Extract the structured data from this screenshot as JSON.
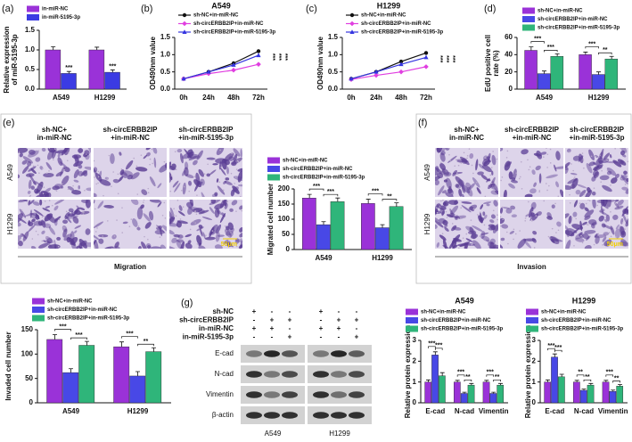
{
  "panel_labels": [
    "(a)",
    "(b)",
    "(c)",
    "(d)",
    "(e)",
    "(f)",
    "(g)"
  ],
  "chart_data": [
    {
      "type": "bar",
      "ylabel": [
        "Relative expression",
        "of miR-5195-3p"
      ],
      "categories": [
        "A549",
        "H1299"
      ],
      "series": [
        {
          "name": "in-miR-NC",
          "color": "#9a32d8",
          "values": [
            1.0,
            1.0
          ],
          "errors": [
            0.08,
            0.07
          ]
        },
        {
          "name": "in-miR-5195-3p",
          "color": "#3b3be3",
          "values": [
            0.4,
            0.43
          ],
          "errors": [
            0.05,
            0.06
          ]
        }
      ],
      "ylim": [
        0,
        1.5
      ],
      "yticks": [
        {
          "value": 0,
          "label": "0.0"
        },
        {
          "value": 0.5,
          "label": "0.5"
        },
        {
          "value": 1,
          "label": "1.0"
        },
        {
          "value": 1.5,
          "label": "1.5"
        }
      ],
      "annotations": [
        "***",
        "***"
      ],
      "legend": "top"
    },
    {
      "type": "line",
      "title": "A549",
      "ylabel": "OD490nm value",
      "categories": [
        "0h",
        "24h",
        "48h",
        "72h"
      ],
      "series": [
        {
          "name": "sh-NC+in-miR-NC",
          "color": "#111111",
          "marker": "circle",
          "values": [
            0.3,
            0.5,
            0.75,
            1.1
          ]
        },
        {
          "name": "sh-circERBB2IP+in-miR-NC",
          "color": "#e03ee0",
          "marker": "diamond",
          "values": [
            0.3,
            0.45,
            0.55,
            0.72
          ]
        },
        {
          "name": "sh-circERBB2IP+in-miR-5195-3p",
          "color": "#3535e0",
          "marker": "triangle",
          "values": [
            0.3,
            0.5,
            0.7,
            0.98
          ]
        }
      ],
      "ylim": [
        0,
        1.5
      ],
      "yticks": [
        {
          "value": 0,
          "label": "0.0"
        },
        {
          "value": 0.5,
          "label": "0.5"
        },
        {
          "value": 1,
          "label": "1.0"
        },
        {
          "value": 1.5,
          "label": "1.5"
        }
      ],
      "annotations": [
        "***",
        "***",
        "***"
      ],
      "legend": "top"
    },
    {
      "type": "line",
      "title": "H1299",
      "ylabel": "OD490nm value",
      "categories": [
        "0h",
        "24h",
        "48h",
        "72h"
      ],
      "series": [
        {
          "name": "sh-NC+in-miR-NC",
          "color": "#111111",
          "marker": "circle",
          "values": [
            0.3,
            0.5,
            0.8,
            1.05
          ]
        },
        {
          "name": "sh-circERBB2IP+in-miR-NC",
          "color": "#e03ee0",
          "marker": "diamond",
          "values": [
            0.28,
            0.4,
            0.5,
            0.65
          ]
        },
        {
          "name": "sh-circERBB2IP+in-miR-5195-3p",
          "color": "#3535e0",
          "marker": "triangle",
          "values": [
            0.3,
            0.5,
            0.72,
            0.92
          ]
        }
      ],
      "ylim": [
        0,
        1.5
      ],
      "yticks": [
        {
          "value": 0,
          "label": "0.0"
        },
        {
          "value": 0.5,
          "label": "0.5"
        },
        {
          "value": 1,
          "label": "1.0"
        },
        {
          "value": 1.5,
          "label": "1.5"
        }
      ],
      "annotations": [
        "***",
        "***",
        "***"
      ],
      "legend": "top"
    },
    {
      "type": "bar",
      "ylabel": [
        "EdU positive cell",
        "rate (%)"
      ],
      "categories": [
        "A549",
        "H1299"
      ],
      "series": [
        {
          "name": "sh-NC+in-miR-NC",
          "color": "#9a32d8",
          "values": [
            45,
            40
          ],
          "errors": [
            4,
            3
          ]
        },
        {
          "name": "sh-circERBB2IP+in-miR-NC",
          "color": "#4848e6",
          "values": [
            18,
            17
          ],
          "errors": [
            3,
            3
          ]
        },
        {
          "name": "sh-circERBB2IP+in-miR-5195-3p",
          "color": "#2fb57a",
          "values": [
            38,
            35
          ],
          "errors": [
            3,
            3
          ]
        }
      ],
      "ylim": [
        0,
        60
      ],
      "yticks": [
        0,
        20,
        40,
        60
      ],
      "annotations": [
        "***",
        "***",
        "***",
        "**"
      ],
      "legend": "top"
    },
    {
      "type": "bar",
      "ylabel": "Migrated cell number",
      "categories": [
        "A549",
        "H1299"
      ],
      "series": [
        {
          "name": "sh-NC+in-miR-NC",
          "color": "#9a32d8",
          "values": [
            170,
            152
          ],
          "errors": [
            12,
            14
          ]
        },
        {
          "name": "sh-circERBB2IP+in-miR-NC",
          "color": "#4848e6",
          "values": [
            82,
            72
          ],
          "errors": [
            10,
            10
          ]
        },
        {
          "name": "sh-circERBB2IP+in-miR-5195-3p",
          "color": "#2fb57a",
          "values": [
            158,
            142
          ],
          "errors": [
            12,
            12
          ]
        }
      ],
      "ylim": [
        0,
        200
      ],
      "yticks": [
        0,
        50,
        100,
        150,
        200
      ],
      "annotations": [
        "***",
        "***",
        "***",
        "**"
      ],
      "legend": "top"
    },
    {
      "type": "bar",
      "ylabel": "Invaded cell number",
      "categories": [
        "A549",
        "H1299"
      ],
      "series": [
        {
          "name": "sh-NC+in-miR-NC",
          "color": "#9a32d8",
          "values": [
            130,
            115
          ],
          "errors": [
            10,
            10
          ]
        },
        {
          "name": "sh-circERBB2IP+in-miR-NC",
          "color": "#4848e6",
          "values": [
            62,
            55
          ],
          "errors": [
            8,
            9
          ]
        },
        {
          "name": "sh-circERBB2IP+in-miR-5195-3p",
          "color": "#2fb57a",
          "values": [
            118,
            105
          ],
          "errors": [
            8,
            8
          ]
        }
      ],
      "ylim": [
        0,
        150
      ],
      "yticks": [
        0,
        50,
        100,
        150
      ],
      "annotations": [
        "***",
        "***",
        "***",
        "**"
      ],
      "legend": "top"
    },
    {
      "type": "bar",
      "title": "A549",
      "ylabel": "Relative protein expression",
      "categories": [
        "E-cad",
        "N-cad",
        "Vimentin"
      ],
      "series": [
        {
          "name": "sh-NC+in-miR-NC",
          "color": "#9a32d8",
          "values": [
            1,
            1,
            1
          ],
          "errors": [
            0.1,
            0.08,
            0.08
          ]
        },
        {
          "name": "sh-circERBB2IP+in-miR-NC",
          "color": "#4848e6",
          "values": [
            2.3,
            0.45,
            0.45
          ],
          "errors": [
            0.15,
            0.06,
            0.06
          ]
        },
        {
          "name": "sh-circERBB2IP+in-miR-5195-3p",
          "color": "#2fb57a",
          "values": [
            1.3,
            0.85,
            0.85
          ],
          "errors": [
            0.15,
            0.08,
            0.08
          ]
        }
      ],
      "ylim": [
        0,
        3
      ],
      "yticks": [
        0,
        1,
        2,
        3
      ],
      "annotations": [
        "***",
        "***",
        "***",
        "**",
        "***",
        "**"
      ],
      "legend": "top"
    },
    {
      "type": "bar",
      "title": "H1299",
      "ylabel": "Relative protein expression",
      "categories": [
        "E-cad",
        "N-cad",
        "Vimentin"
      ],
      "series": [
        {
          "name": "sh-NC+in-miR-NC",
          "color": "#9a32d8",
          "values": [
            1,
            1,
            1
          ],
          "errors": [
            0.1,
            0.08,
            0.08
          ]
        },
        {
          "name": "sh-circERBB2IP+in-miR-NC",
          "color": "#4848e6",
          "values": [
            2.2,
            0.6,
            0.55
          ],
          "errors": [
            0.15,
            0.06,
            0.06
          ]
        },
        {
          "name": "sh-circERBB2IP+in-miR-5195-3p",
          "color": "#2fb57a",
          "values": [
            1.25,
            0.85,
            0.8
          ],
          "errors": [
            0.12,
            0.08,
            0.08
          ]
        }
      ],
      "ylim": [
        0,
        3
      ],
      "yticks": [
        0,
        1,
        2,
        3
      ],
      "annotations": [
        "***",
        "***",
        "**",
        "**",
        "***",
        "**"
      ],
      "legend": "top"
    }
  ],
  "migration": {
    "columns": [
      [
        "sh-NC+",
        "in-miR-NC"
      ],
      [
        "sh-circERBB2IP",
        "+in-miR-NC"
      ],
      [
        "sh-circERBB2IP",
        "+in-miR-5195-3p"
      ]
    ],
    "rows": [
      "A549",
      "H1299"
    ],
    "scale": "50μm",
    "caption": "Migration"
  },
  "invasion": {
    "columns": [
      [
        "sh-NC+",
        "in-miR-NC"
      ],
      [
        "sh-circERBB2IP",
        "+in-miR-NC"
      ],
      [
        "sh-circERBB2IP",
        "+in-miR-5195-3p"
      ]
    ],
    "rows": [
      "A549",
      "H1299"
    ],
    "scale": "50μm",
    "caption": "Invasion"
  },
  "blot": {
    "conditions": [
      {
        "label": "sh-NC",
        "signs": [
          "+",
          "-",
          "-",
          "+",
          "-",
          "-"
        ]
      },
      {
        "label": "sh-circERBB2IP",
        "signs": [
          "-",
          "+",
          "+",
          "-",
          "+",
          "+"
        ]
      },
      {
        "label": "in-miR-NC",
        "signs": [
          "+",
          "+",
          "-",
          "+",
          "+",
          "-"
        ]
      },
      {
        "label": "in-miR-5195-3p",
        "signs": [
          "-",
          "-",
          "+",
          "-",
          "-",
          "+"
        ]
      }
    ],
    "proteins": [
      "E-cad",
      "N-cad",
      "Vimentin",
      "β-actin"
    ],
    "cells": [
      "A549",
      "H1299"
    ]
  }
}
